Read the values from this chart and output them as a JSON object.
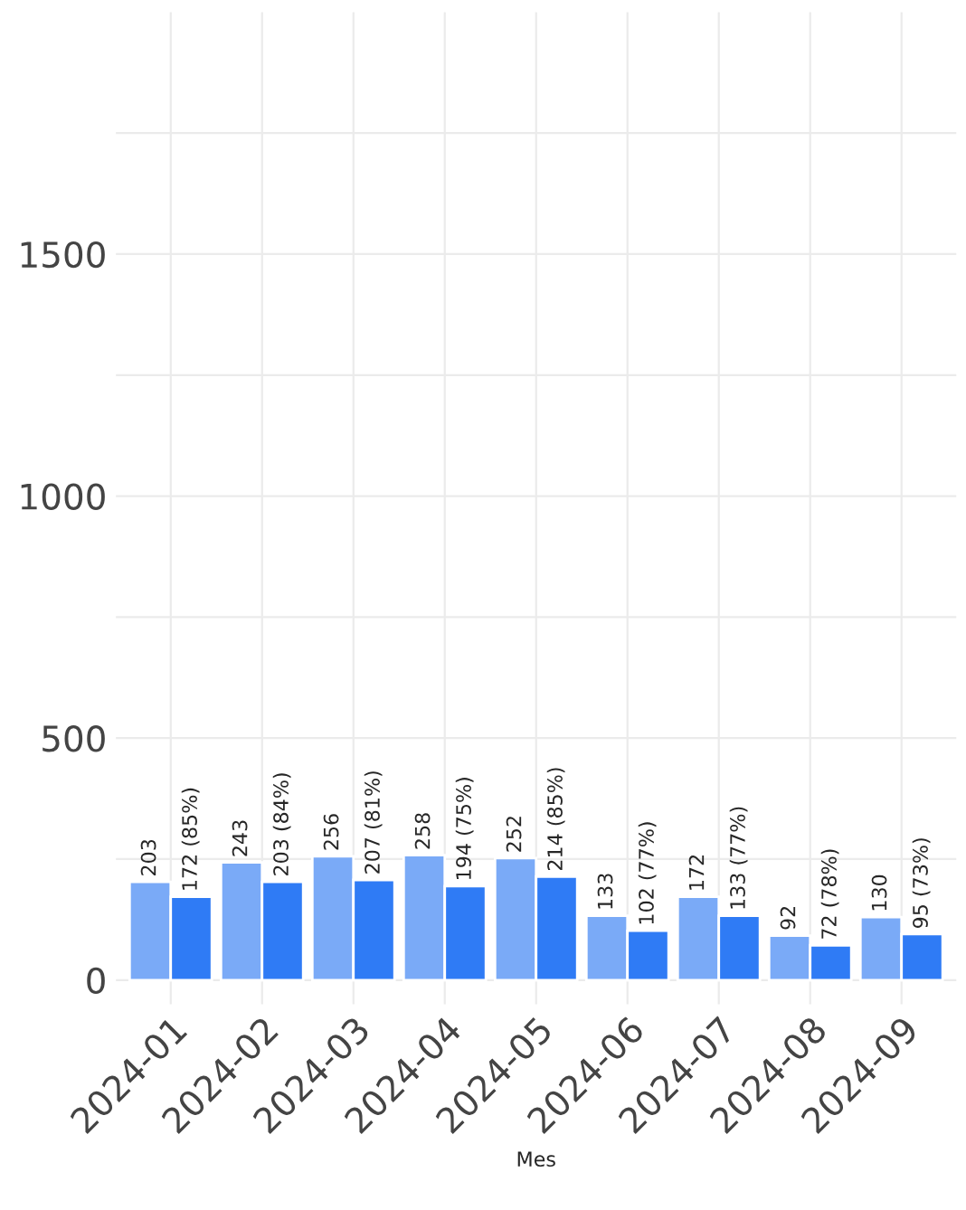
{
  "chart_data": {
    "type": "bar",
    "xlabel": "Mes",
    "categories": [
      "2024-01",
      "2024-02",
      "2024-03",
      "2024-04",
      "2024-05",
      "2024-06",
      "2024-07",
      "2024-08",
      "2024-09"
    ],
    "series": [
      {
        "color": "#7aaaf7",
        "values": [
          203,
          243,
          256,
          258,
          252,
          133,
          172,
          92,
          130
        ],
        "value_labels": [
          "203",
          "243",
          "256",
          "258",
          "252",
          "133",
          "172",
          "92",
          "130"
        ]
      },
      {
        "color": "#2f7bf5",
        "values": [
          172,
          203,
          207,
          194,
          214,
          102,
          133,
          72,
          95
        ],
        "value_labels": [
          "172 (85%)",
          "203 (84%)",
          "207 (81%)",
          "194 (75%)",
          "214 (85%)",
          "102 (77%)",
          "133 (77%)",
          "72 (78%)",
          "95 (73%)"
        ]
      }
    ],
    "ylim": [
      -50,
      2000
    ],
    "yticks": [
      0,
      500,
      1000,
      1500
    ],
    "grid": true
  }
}
